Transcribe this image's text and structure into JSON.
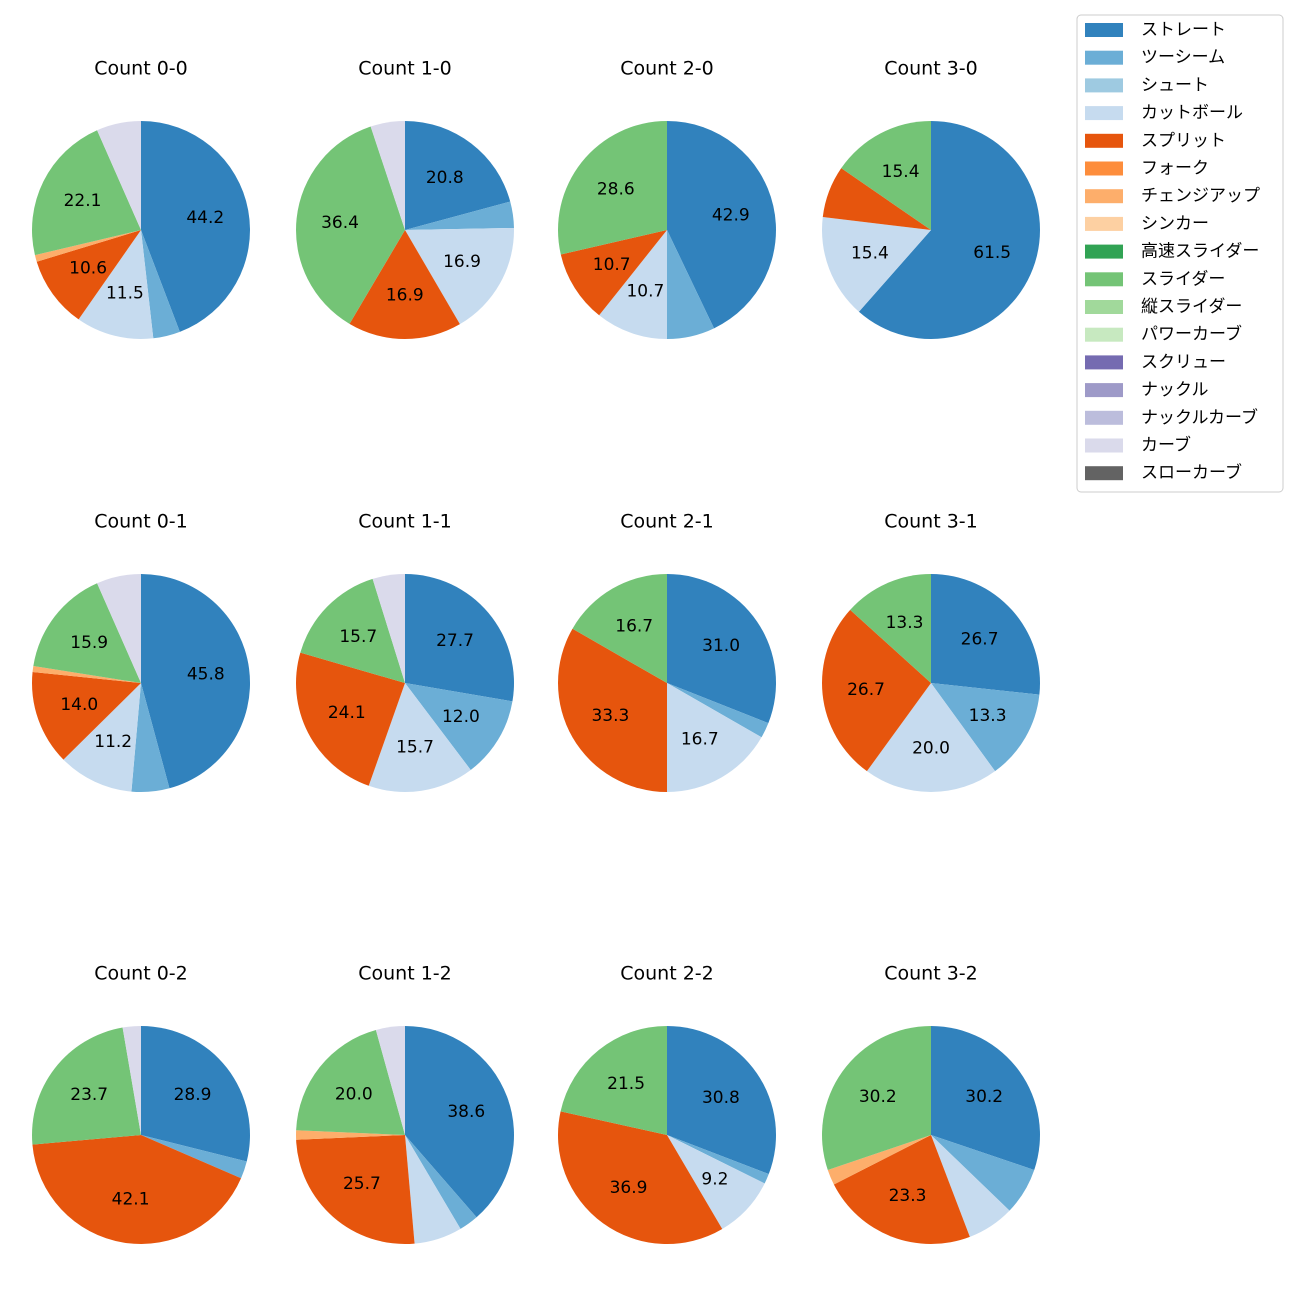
{
  "chart_data": {
    "type": "pie",
    "legend": {
      "placement": "top-right",
      "entries": [
        {
          "name": "ストレート",
          "color": "#3182bd"
        },
        {
          "name": "ツーシーム",
          "color": "#6baed6"
        },
        {
          "name": "シュート",
          "color": "#9ecae1"
        },
        {
          "name": "カットボール",
          "color": "#c6dbef"
        },
        {
          "name": "スプリット",
          "color": "#e6550d"
        },
        {
          "name": "フォーク",
          "color": "#fd8d3c"
        },
        {
          "name": "チェンジアップ",
          "color": "#fdae6b"
        },
        {
          "name": "シンカー",
          "color": "#fdd0a2"
        },
        {
          "name": "高速スライダー",
          "color": "#31a354"
        },
        {
          "name": "スライダー",
          "color": "#74c476"
        },
        {
          "name": "縦スライダー",
          "color": "#a1d99b"
        },
        {
          "name": "パワーカーブ",
          "color": "#c7e9c0"
        },
        {
          "name": "スクリュー",
          "color": "#756bb1"
        },
        {
          "name": "ナックル",
          "color": "#9e9ac8"
        },
        {
          "name": "ナックルカーブ",
          "color": "#bcbddc"
        },
        {
          "name": "カーブ",
          "color": "#dadaeb"
        },
        {
          "name": "スローカーブ",
          "color": "#636363"
        }
      ]
    },
    "pies": [
      {
        "title": "Count 0-0",
        "slices": [
          {
            "pitch": "ストレート",
            "value": 44.2,
            "label": "44.2"
          },
          {
            "pitch": "ツーシーム",
            "value": 4.0,
            "label": ""
          },
          {
            "pitch": "カットボール",
            "value": 11.5,
            "label": "11.5"
          },
          {
            "pitch": "スプリット",
            "value": 10.6,
            "label": "10.6"
          },
          {
            "pitch": "チェンジアップ",
            "value": 1.0,
            "label": ""
          },
          {
            "pitch": "スライダー",
            "value": 22.1,
            "label": "22.1"
          },
          {
            "pitch": "カーブ",
            "value": 6.6,
            "label": ""
          }
        ]
      },
      {
        "title": "Count 1-0",
        "slices": [
          {
            "pitch": "ストレート",
            "value": 20.8,
            "label": "20.8"
          },
          {
            "pitch": "ツーシーム",
            "value": 3.9,
            "label": ""
          },
          {
            "pitch": "カットボール",
            "value": 16.9,
            "label": "16.9"
          },
          {
            "pitch": "スプリット",
            "value": 16.9,
            "label": "16.9"
          },
          {
            "pitch": "スライダー",
            "value": 36.4,
            "label": "36.4"
          },
          {
            "pitch": "カーブ",
            "value": 5.1,
            "label": ""
          }
        ]
      },
      {
        "title": "Count 2-0",
        "slices": [
          {
            "pitch": "ストレート",
            "value": 42.9,
            "label": "42.9"
          },
          {
            "pitch": "ツーシーム",
            "value": 7.1,
            "label": ""
          },
          {
            "pitch": "カットボール",
            "value": 10.7,
            "label": "10.7"
          },
          {
            "pitch": "スプリット",
            "value": 10.7,
            "label": "10.7"
          },
          {
            "pitch": "スライダー",
            "value": 28.6,
            "label": "28.6"
          }
        ]
      },
      {
        "title": "Count 3-0",
        "slices": [
          {
            "pitch": "ストレート",
            "value": 61.5,
            "label": "61.5"
          },
          {
            "pitch": "カットボール",
            "value": 15.4,
            "label": "15.4"
          },
          {
            "pitch": "スプリット",
            "value": 7.7,
            "label": ""
          },
          {
            "pitch": "スライダー",
            "value": 15.4,
            "label": "15.4"
          }
        ]
      },
      {
        "title": "Count 0-1",
        "slices": [
          {
            "pitch": "ストレート",
            "value": 45.8,
            "label": "45.8"
          },
          {
            "pitch": "ツーシーム",
            "value": 5.6,
            "label": ""
          },
          {
            "pitch": "カットボール",
            "value": 11.2,
            "label": "11.2"
          },
          {
            "pitch": "スプリット",
            "value": 14.0,
            "label": "14.0"
          },
          {
            "pitch": "チェンジアップ",
            "value": 0.9,
            "label": ""
          },
          {
            "pitch": "スライダー",
            "value": 15.9,
            "label": "15.9"
          },
          {
            "pitch": "カーブ",
            "value": 6.6,
            "label": ""
          }
        ]
      },
      {
        "title": "Count 1-1",
        "slices": [
          {
            "pitch": "ストレート",
            "value": 27.7,
            "label": "27.7"
          },
          {
            "pitch": "ツーシーム",
            "value": 12.0,
            "label": "12.0"
          },
          {
            "pitch": "カットボール",
            "value": 15.7,
            "label": "15.7"
          },
          {
            "pitch": "スプリット",
            "value": 24.1,
            "label": "24.1"
          },
          {
            "pitch": "スライダー",
            "value": 15.7,
            "label": "15.7"
          },
          {
            "pitch": "カーブ",
            "value": 4.8,
            "label": ""
          }
        ]
      },
      {
        "title": "Count 2-1",
        "slices": [
          {
            "pitch": "ストレート",
            "value": 31.0,
            "label": "31.0"
          },
          {
            "pitch": "ツーシーム",
            "value": 2.3,
            "label": ""
          },
          {
            "pitch": "カットボール",
            "value": 16.7,
            "label": "16.7"
          },
          {
            "pitch": "スプリット",
            "value": 33.3,
            "label": "33.3"
          },
          {
            "pitch": "スライダー",
            "value": 16.7,
            "label": "16.7"
          }
        ]
      },
      {
        "title": "Count 3-1",
        "slices": [
          {
            "pitch": "ストレート",
            "value": 26.7,
            "label": "26.7"
          },
          {
            "pitch": "ツーシーム",
            "value": 13.3,
            "label": "13.3"
          },
          {
            "pitch": "カットボール",
            "value": 20.0,
            "label": "20.0"
          },
          {
            "pitch": "スプリット",
            "value": 26.7,
            "label": "26.7"
          },
          {
            "pitch": "スライダー",
            "value": 13.3,
            "label": "13.3"
          }
        ]
      },
      {
        "title": "Count 0-2",
        "slices": [
          {
            "pitch": "ストレート",
            "value": 28.9,
            "label": "28.9"
          },
          {
            "pitch": "ツーシーム",
            "value": 2.6,
            "label": ""
          },
          {
            "pitch": "スプリット",
            "value": 42.1,
            "label": "42.1"
          },
          {
            "pitch": "スライダー",
            "value": 23.7,
            "label": "23.7"
          },
          {
            "pitch": "カーブ",
            "value": 2.7,
            "label": ""
          }
        ]
      },
      {
        "title": "Count 1-2",
        "slices": [
          {
            "pitch": "ストレート",
            "value": 38.6,
            "label": "38.6"
          },
          {
            "pitch": "ツーシーム",
            "value": 2.9,
            "label": ""
          },
          {
            "pitch": "カットボール",
            "value": 7.1,
            "label": ""
          },
          {
            "pitch": "スプリット",
            "value": 25.7,
            "label": "25.7"
          },
          {
            "pitch": "チェンジアップ",
            "value": 1.4,
            "label": ""
          },
          {
            "pitch": "スライダー",
            "value": 20.0,
            "label": "20.0"
          },
          {
            "pitch": "カーブ",
            "value": 4.3,
            "label": ""
          }
        ]
      },
      {
        "title": "Count 2-2",
        "slices": [
          {
            "pitch": "ストレート",
            "value": 30.8,
            "label": "30.8"
          },
          {
            "pitch": "ツーシーム",
            "value": 1.5,
            "label": ""
          },
          {
            "pitch": "カットボール",
            "value": 9.2,
            "label": "9.2"
          },
          {
            "pitch": "スプリット",
            "value": 36.9,
            "label": "36.9"
          },
          {
            "pitch": "スライダー",
            "value": 21.5,
            "label": "21.5"
          }
        ]
      },
      {
        "title": "Count 3-2",
        "slices": [
          {
            "pitch": "ストレート",
            "value": 30.2,
            "label": "30.2"
          },
          {
            "pitch": "ツーシーム",
            "value": 7.0,
            "label": ""
          },
          {
            "pitch": "カットボール",
            "value": 7.0,
            "label": ""
          },
          {
            "pitch": "スプリット",
            "value": 23.3,
            "label": "23.3"
          },
          {
            "pitch": "チェンジアップ",
            "value": 2.3,
            "label": ""
          },
          {
            "pitch": "スライダー",
            "value": 30.2,
            "label": "30.2"
          }
        ]
      }
    ]
  }
}
